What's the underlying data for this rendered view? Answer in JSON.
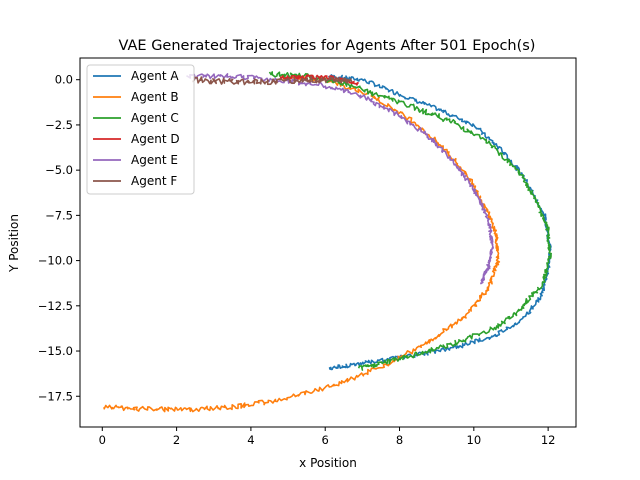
{
  "chart_data": {
    "type": "line",
    "title": "VAE Generated Trajectories for Agents After 501 Epoch(s)",
    "xlabel": "x Position",
    "ylabel": "Y Position",
    "xlim": [
      -0.6,
      12.75
    ],
    "ylim": [
      -19.2,
      1.2
    ],
    "xticks": [
      0,
      2,
      4,
      6,
      8,
      10,
      12
    ],
    "yticks": [
      0.0,
      -2.5,
      -5.0,
      -7.5,
      -10.0,
      -12.5,
      -15.0,
      -17.5
    ],
    "ytick_labels": [
      "0.0",
      "−2.5",
      "−5.0",
      "−7.5",
      "−10.0",
      "−12.5",
      "−15.0",
      "−17.5"
    ],
    "grid": false,
    "legend_position": "top-left",
    "series": [
      {
        "name": "Agent A",
        "color": "#1f77b4",
        "noise": 0.1,
        "x": [
          6.1,
          7.0,
          8.0,
          9.0,
          10.0,
          10.8,
          11.4,
          11.9,
          12.05,
          12.0,
          11.8,
          11.3,
          10.5,
          9.5,
          8.5,
          7.5,
          6.6,
          6.1
        ],
        "y": [
          0.2,
          0.0,
          -0.8,
          -1.6,
          -2.5,
          -4.0,
          -5.5,
          -7.5,
          -9.2,
          -10.6,
          -12.0,
          -13.3,
          -14.2,
          -14.8,
          -15.2,
          -15.5,
          -15.8,
          -15.95
        ]
      },
      {
        "name": "Agent B",
        "color": "#ff7f0e",
        "noise": 0.12,
        "x": [
          4.8,
          6.0,
          7.2,
          8.3,
          9.2,
          9.9,
          10.3,
          10.6,
          10.65,
          10.4,
          9.8,
          8.8,
          7.6,
          6.2,
          4.8,
          3.5,
          2.2,
          1.0,
          0.05
        ],
        "y": [
          0.1,
          0.0,
          -0.8,
          -2.2,
          -3.8,
          -5.5,
          -7.0,
          -8.5,
          -10.0,
          -11.5,
          -13.0,
          -14.5,
          -15.8,
          -16.9,
          -17.7,
          -18.1,
          -18.25,
          -18.2,
          -18.1
        ]
      },
      {
        "name": "Agent C",
        "color": "#2ca02c",
        "noise": 0.13,
        "x": [
          4.5,
          5.5,
          6.5,
          7.5,
          8.5,
          9.5,
          10.4,
          11.2,
          11.7,
          12.0,
          12.05,
          11.85,
          11.3,
          10.6,
          9.6,
          8.6,
          7.7,
          6.9
        ],
        "y": [
          0.3,
          0.2,
          -0.2,
          -0.9,
          -1.6,
          -2.4,
          -3.5,
          -5.0,
          -6.8,
          -8.4,
          -9.8,
          -11.3,
          -12.6,
          -13.7,
          -14.5,
          -15.1,
          -15.6,
          -15.95
        ]
      },
      {
        "name": "Agent D",
        "color": "#d62728",
        "noise": 0.1,
        "x": [
          4.8,
          5.5,
          6.2,
          6.9
        ],
        "y": [
          0.1,
          0.15,
          0.1,
          -0.2
        ]
      },
      {
        "name": "Agent E",
        "color": "#9467bd",
        "noise": 0.12,
        "x": [
          2.3,
          3.5,
          4.7,
          5.9,
          7.0,
          8.0,
          8.9,
          9.6,
          10.1,
          10.4,
          10.5,
          10.4,
          10.2
        ],
        "y": [
          0.2,
          0.2,
          0.0,
          -0.3,
          -0.9,
          -2.0,
          -3.3,
          -4.9,
          -6.4,
          -7.8,
          -9.2,
          -10.3,
          -11.2
        ]
      },
      {
        "name": "Agent F",
        "color": "#8c564b",
        "noise": 0.16,
        "x": [
          2.4,
          3.5,
          4.5,
          5.4,
          6.1,
          6.7
        ],
        "y": [
          0.0,
          -0.1,
          -0.1,
          0.0,
          0.0,
          -0.1
        ]
      }
    ]
  }
}
